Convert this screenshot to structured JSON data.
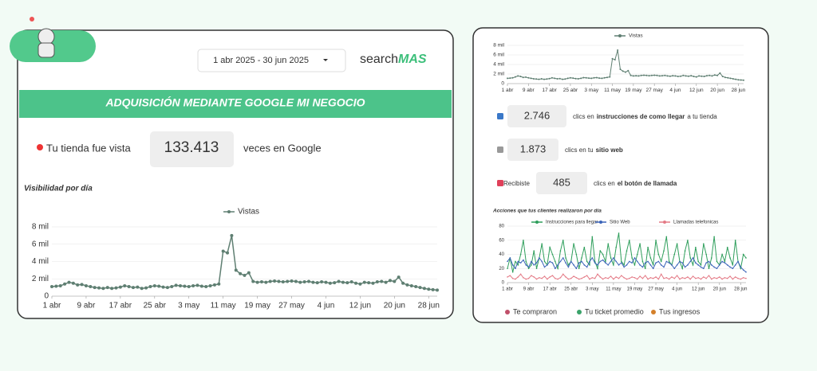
{
  "header": {
    "date_range": "1 abr 2025 - 30 jun 2025",
    "brand": "search",
    "brand_accent": "MAS",
    "banner": "ADQUISICIÓN MEDIANTE GOOGLE MI NEGOCIO"
  },
  "views": {
    "prefix": "Tu tienda fue vista",
    "value": "133.413",
    "suffix": "veces en Google"
  },
  "charts": [
    {
      "type": "line",
      "title": "Visibilidad por día",
      "name": "Vistas",
      "color": "#5f7f72",
      "categories": [
        "1 abr",
        null,
        null,
        null,
        null,
        null,
        null,
        null,
        "9 abr",
        null,
        null,
        null,
        null,
        null,
        null,
        null,
        "17 abr",
        null,
        null,
        null,
        null,
        null,
        null,
        null,
        "25 abr",
        null,
        null,
        null,
        null,
        null,
        null,
        null,
        "3 may",
        null,
        null,
        null,
        null,
        null,
        null,
        null,
        "11 may",
        null,
        null,
        null,
        null,
        null,
        null,
        null,
        "19 may",
        null,
        null,
        null,
        null,
        null,
        null,
        null,
        "27 may",
        null,
        null,
        null,
        null,
        null,
        null,
        null,
        "4 jun",
        null,
        null,
        null,
        null,
        null,
        null,
        null,
        "12 jun",
        null,
        null,
        null,
        null,
        null,
        null,
        null,
        "20 jun",
        null,
        null,
        null,
        null,
        null,
        null,
        null,
        "28 jun",
        null,
        null
      ],
      "values": [
        1100,
        1150,
        1200,
        1400,
        1600,
        1500,
        1300,
        1350,
        1200,
        1100,
        1000,
        950,
        900,
        1000,
        900,
        950,
        1050,
        1200,
        1100,
        1000,
        1050,
        900,
        950,
        1100,
        1200,
        1150,
        1050,
        1000,
        1100,
        1250,
        1200,
        1150,
        1100,
        1200,
        1250,
        1150,
        1100,
        1200,
        1300,
        1400,
        5200,
        5000,
        7000,
        3000,
        2600,
        2400,
        2700,
        1700,
        1600,
        1650,
        1600,
        1700,
        1750,
        1700,
        1650,
        1700,
        1750,
        1700,
        1600,
        1650,
        1700,
        1600,
        1550,
        1650,
        1600,
        1500,
        1550,
        1700,
        1600,
        1550,
        1650,
        1500,
        1400,
        1600,
        1550,
        1500,
        1650,
        1700,
        1600,
        1800,
        1700,
        2200,
        1500,
        1300,
        1200,
        1100,
        1000,
        900,
        800,
        750,
        700
      ],
      "ylim": [
        0,
        8000
      ],
      "yticks": [
        0,
        {
          "value": 2000,
          "label": "2 mil"
        },
        {
          "value": 4000,
          "label": "4 mil"
        },
        {
          "value": 6000,
          "label": "6 mil"
        },
        {
          "value": 8000,
          "label": "8 mil"
        }
      ]
    },
    {
      "type": "line",
      "title": "Acciones que tus clientes realizaron por día",
      "ylim": [
        0,
        80
      ],
      "yticks": [
        0,
        20,
        40,
        60,
        80
      ],
      "series": [
        {
          "name": "Instrucciones para llegar",
          "color": "#2e9e5b",
          "values": [
            20,
            35,
            15,
            30,
            25,
            40,
            60,
            30,
            20,
            25,
            45,
            20,
            35,
            55,
            30,
            25,
            50,
            40,
            30,
            20,
            45,
            60,
            35,
            25,
            30,
            55,
            40,
            20,
            35,
            50,
            30,
            25,
            65,
            30,
            20,
            45,
            40,
            30,
            55,
            35,
            25,
            50,
            70,
            30,
            25,
            45,
            60,
            35,
            25,
            40,
            55,
            30,
            20,
            50,
            35,
            25,
            60,
            40,
            30,
            45,
            65,
            30,
            25,
            40,
            55,
            30,
            20,
            45,
            60,
            35,
            25,
            50,
            30,
            25,
            55,
            40,
            20,
            35,
            65,
            30,
            25,
            40,
            30,
            50,
            35,
            25,
            60,
            30,
            20,
            40,
            35
          ]
        },
        {
          "name": "Sitio Web",
          "color": "#3a63b8",
          "values": [
            30,
            35,
            25,
            20,
            30,
            28,
            32,
            25,
            22,
            30,
            25,
            28,
            35,
            30,
            22,
            25,
            30,
            28,
            20,
            25,
            30,
            35,
            28,
            22,
            30,
            25,
            20,
            28,
            30,
            25,
            22,
            30,
            35,
            28,
            25,
            30,
            32,
            28,
            25,
            30,
            35,
            30,
            25,
            28,
            22,
            25,
            30,
            28,
            35,
            30,
            25,
            22,
            28,
            30,
            25,
            20,
            28,
            30,
            25,
            22,
            30,
            28,
            25,
            20,
            25,
            30,
            28,
            22,
            25,
            30,
            35,
            28,
            25,
            22,
            20,
            28,
            30,
            25,
            22,
            20,
            25,
            30,
            28,
            25,
            22,
            20,
            25,
            30,
            22,
            18,
            15
          ]
        },
        {
          "name": "Llamadas telefonicas",
          "color": "#e47a86",
          "values": [
            8,
            10,
            6,
            5,
            8,
            12,
            7,
            5,
            6,
            10,
            8,
            5,
            7,
            6,
            9,
            5,
            8,
            10,
            6,
            5,
            7,
            12,
            8,
            5,
            6,
            9,
            7,
            5,
            6,
            8,
            10,
            5,
            7,
            6,
            12,
            8,
            5,
            7,
            6,
            9,
            5,
            8,
            6,
            10,
            7,
            5,
            6,
            8,
            7,
            5,
            9,
            6,
            10,
            5,
            7,
            6,
            8,
            5,
            12,
            6,
            7,
            5,
            8,
            6,
            10,
            5,
            7,
            6,
            8,
            5,
            9,
            6,
            7,
            5,
            8,
            6,
            10,
            5,
            7,
            6,
            8,
            5,
            7,
            6,
            9,
            5,
            8,
            6,
            5,
            7,
            6
          ]
        }
      ]
    }
  ],
  "clicks": [
    {
      "lead": null,
      "value": "2.746",
      "prefix": "clics en",
      "strong": "instrucciones de como llegar",
      "suffix": "a tu tienda"
    },
    {
      "lead": null,
      "value": "1.873",
      "prefix": "clics en tu",
      "strong": "sitio web",
      "suffix": null
    },
    {
      "lead": "Recibiste",
      "value": "485",
      "prefix": "clics en",
      "strong": "el botón de llamada",
      "suffix": null
    }
  ],
  "footer": [
    "Te compraron",
    "Tu ticket promedio",
    "Tus ingresos"
  ]
}
